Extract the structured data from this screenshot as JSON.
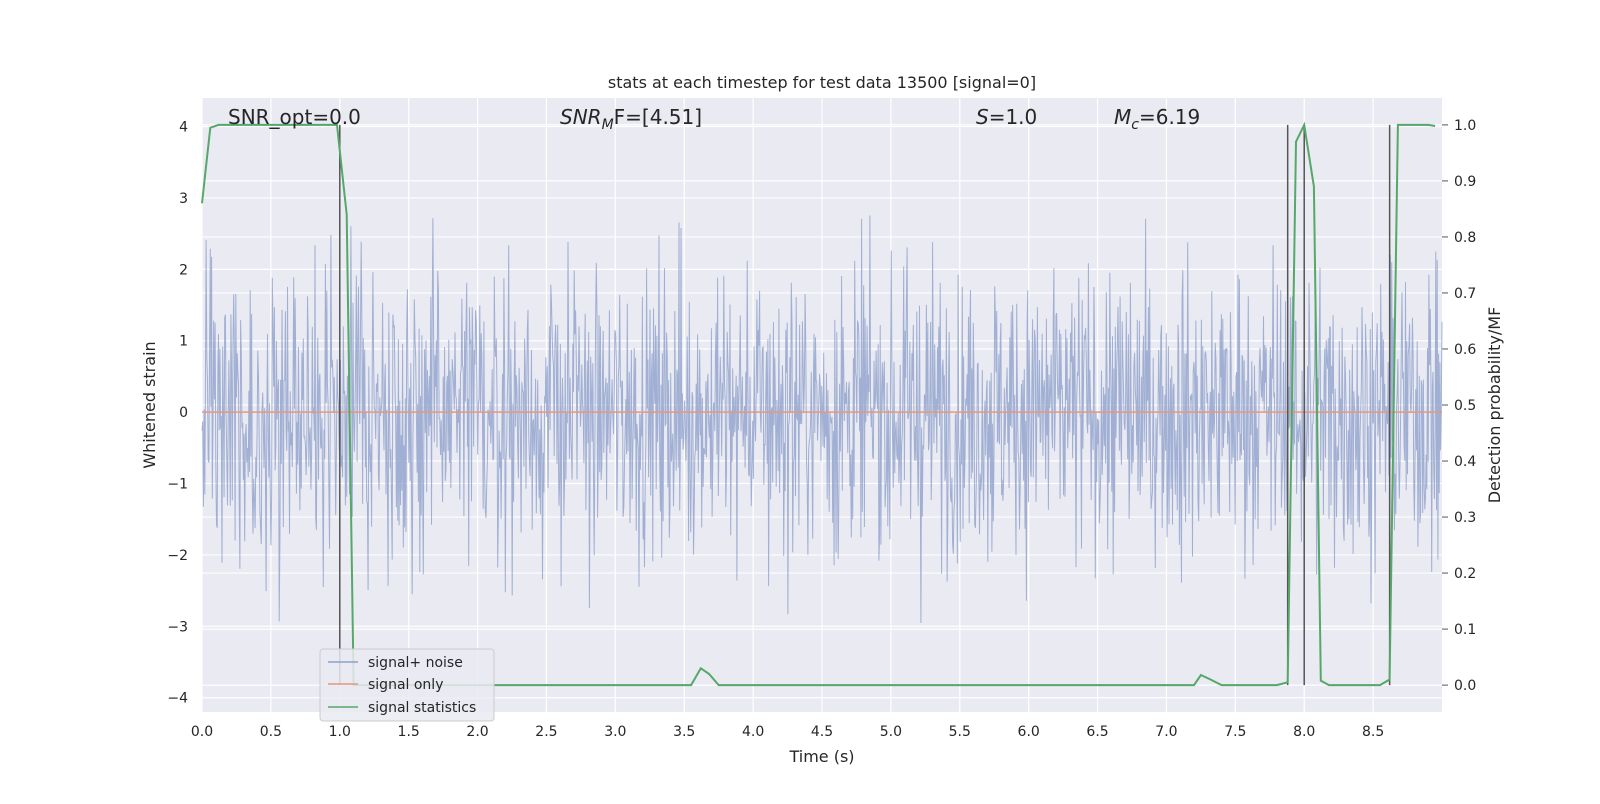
{
  "chart_data": {
    "type": "line",
    "title": "stats at each timestep for test data 13500 [signal=0]",
    "xlabel": "Time (s)",
    "ylabel_left": "Whitened strain",
    "ylabel_right": "Detection probability/MF",
    "xlim": [
      0,
      9.0
    ],
    "ylim_left": [
      -4.2,
      4.4
    ],
    "ylim_right": [
      -0.048,
      1.048
    ],
    "x_ticks": [
      "0.0",
      "0.5",
      "1.0",
      "1.5",
      "2.0",
      "2.5",
      "3.0",
      "3.5",
      "4.0",
      "4.5",
      "5.0",
      "5.5",
      "6.0",
      "6.5",
      "7.0",
      "7.5",
      "8.0",
      "8.5"
    ],
    "y_left_ticks": [
      "4",
      "3",
      "2",
      "1",
      "0",
      "−1",
      "−2",
      "−3",
      "−4"
    ],
    "y_right_ticks": [
      "1.0",
      "0.9",
      "0.8",
      "0.7",
      "0.6",
      "0.5",
      "0.4",
      "0.3",
      "0.2",
      "0.1",
      "0.0"
    ],
    "grid": true,
    "annotations": {
      "snr_opt": "SNR_opt=0.0",
      "snr_mf_base": "SNR",
      "snr_mf_sub": "M",
      "snr_mf_rest": "F=[4.51]",
      "s_label": "S",
      "s_value": "=1.0",
      "mc_base": "M",
      "mc_sub": "c",
      "mc_value": "=6.19"
    },
    "legend": {
      "placement": "lower-left",
      "entries": [
        "signal+ noise",
        "signal only",
        "signal statistics"
      ]
    },
    "series": [
      {
        "name": "signal+ noise",
        "axis": "left",
        "color": "#8da0cb",
        "description_note": "",
        "x_range": [
          0,
          9.0
        ],
        "amplitude_std": 1.0
      },
      {
        "name": "signal only",
        "axis": "left",
        "color": "#e8967a",
        "x": [
          0,
          9.0
        ],
        "y": [
          0,
          0
        ]
      },
      {
        "name": "signal statistics",
        "axis": "right",
        "color": "#55a868",
        "x": [
          0.0,
          0.06,
          0.12,
          0.25,
          0.5,
          0.75,
          0.98,
          1.05,
          1.1,
          1.2,
          1.5,
          2.0,
          2.5,
          3.0,
          3.4,
          3.55,
          3.62,
          3.68,
          3.75,
          4.0,
          5.0,
          6.0,
          7.0,
          7.2,
          7.25,
          7.32,
          7.4,
          7.6,
          7.8,
          7.88,
          7.94,
          8.0,
          8.07,
          8.12,
          8.18,
          8.3,
          8.55,
          8.62,
          8.68,
          8.9,
          8.95
        ],
        "y": [
          0.86,
          0.995,
          1.0,
          1.0,
          1.0,
          1.0,
          1.0,
          0.84,
          0.0,
          0.0,
          0.0,
          0.0,
          0.0,
          0.0,
          0.0,
          0.0,
          0.03,
          0.02,
          0.0,
          0.0,
          0.0,
          0.0,
          0.0,
          0.0,
          0.018,
          0.01,
          0.0,
          0.0,
          0.0,
          0.005,
          0.97,
          1.0,
          0.89,
          0.008,
          0.0,
          0.0,
          0.0,
          0.01,
          1.0,
          1.0,
          0.998
        ]
      }
    ],
    "vertical_lines_x": [
      1.0,
      7.88,
      8.0,
      8.62
    ],
    "vertical_line_color": "#555555"
  }
}
